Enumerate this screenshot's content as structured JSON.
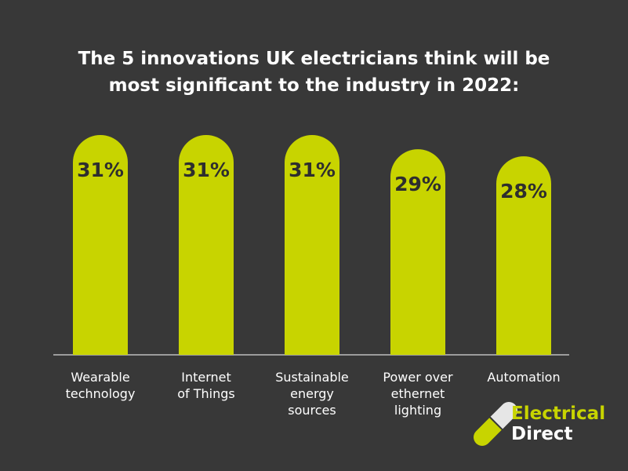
{
  "chart_data": {
    "type": "bar",
    "title": "The 5 innovations UK electricians think will be\nmost significant to the industry in 2022:",
    "categories": [
      "Wearable\ntechnology",
      "Internet\nof Things",
      "Sustainable\nenergy\nsources",
      "Power over\nethernet\nlighting",
      "Automation"
    ],
    "values": [
      31,
      31,
      31,
      29,
      28
    ],
    "value_labels": [
      "31%",
      "31%",
      "31%",
      "29%",
      "28%"
    ],
    "color": "#c8d400"
  },
  "logo": {
    "line1": "Electrical",
    "line2": "Direct"
  }
}
